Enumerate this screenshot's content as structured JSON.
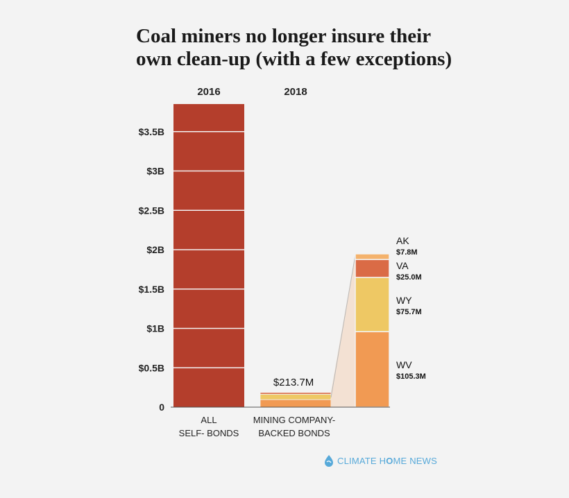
{
  "title_lines": [
    "Coal miners no longer insure their",
    "own clean-up (with a few exceptions)"
  ],
  "brand": {
    "part1": "CLIMATE H",
    "part2": "O",
    "part3": "ME NEWS"
  },
  "colors": {
    "self_bonds": "#b43e2c",
    "AK": "#f4b26c",
    "VA": "#da6b46",
    "WY": "#eec864",
    "WV": "#f19a53",
    "zoom": "#f2dccb",
    "brand": "#57a9d9"
  },
  "chart_data": {
    "type": "bar",
    "title": "Coal miners no longer insure their own clean-up (with a few exceptions)",
    "ylim": [
      0,
      3.85
    ],
    "yunit": "billion USD",
    "ytick_values": [
      0,
      0.5,
      1,
      1.5,
      2,
      2.5,
      3,
      3.5
    ],
    "ytick_labels": [
      "0",
      "$0.5B",
      "$1B",
      "$1.5B",
      "$2B",
      "$2.5B",
      "$3B",
      "$3.5B"
    ],
    "categories": [
      {
        "year": "2016",
        "label_lines": [
          "ALL",
          "SELF- BONDS"
        ],
        "value": 3.85
      },
      {
        "year": "2018",
        "label_lines": [
          "MINING COMPANY-",
          "BACKED BONDS"
        ],
        "value": 0.2137,
        "value_label": "$213.7M"
      }
    ],
    "breakdown_2018": [
      {
        "state": "WV",
        "value": 105.3,
        "label": "$105.3M"
      },
      {
        "state": "WY",
        "value": 75.7,
        "label": "$75.7M"
      },
      {
        "state": "VA",
        "value": 25.0,
        "label": "$25.0M"
      },
      {
        "state": "AK",
        "value": 7.8,
        "label": "$7.8M"
      }
    ],
    "breakdown_unit": "million USD"
  }
}
